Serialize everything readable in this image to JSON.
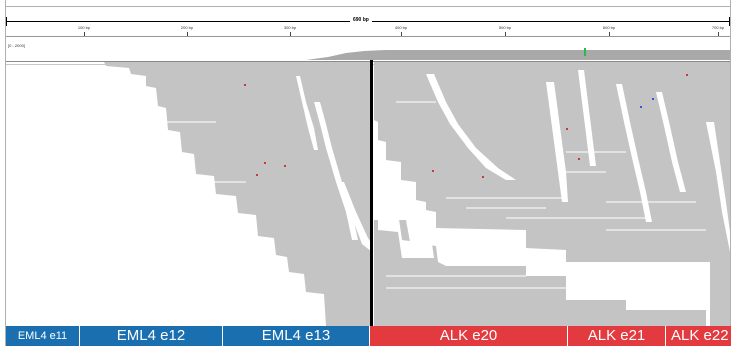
{
  "ruler": {
    "span_label": "690 bp",
    "tick_labels": [
      "100 bp",
      "200 bp",
      "300 bp",
      "400 bp",
      "500 bp",
      "600 bp",
      "700 bp"
    ]
  },
  "coverage": {
    "label": "[0 - 2000]"
  },
  "exons": [
    {
      "label": "EML4 e11",
      "gene": "EML4",
      "color": "#1a6fb0"
    },
    {
      "label": "EML4 e12",
      "gene": "EML4",
      "color": "#1a6fb0"
    },
    {
      "label": "EML4 e13",
      "gene": "EML4",
      "color": "#1a6fb0"
    },
    {
      "label": "ALK e20",
      "gene": "ALK",
      "color": "#e23a3f"
    },
    {
      "label": "ALK e21",
      "gene": "ALK",
      "color": "#e23a3f"
    },
    {
      "label": "ALK e22",
      "gene": "ALK",
      "color": "#e23a3f"
    }
  ],
  "colors": {
    "read": "#c4c4c4",
    "coverage": "#a9a9a9",
    "breakpoint": "#000000",
    "mismatch_red": "#c43b3b",
    "mismatch_blue": "#3a55d9",
    "mismatch_green": "#2bb84a"
  }
}
